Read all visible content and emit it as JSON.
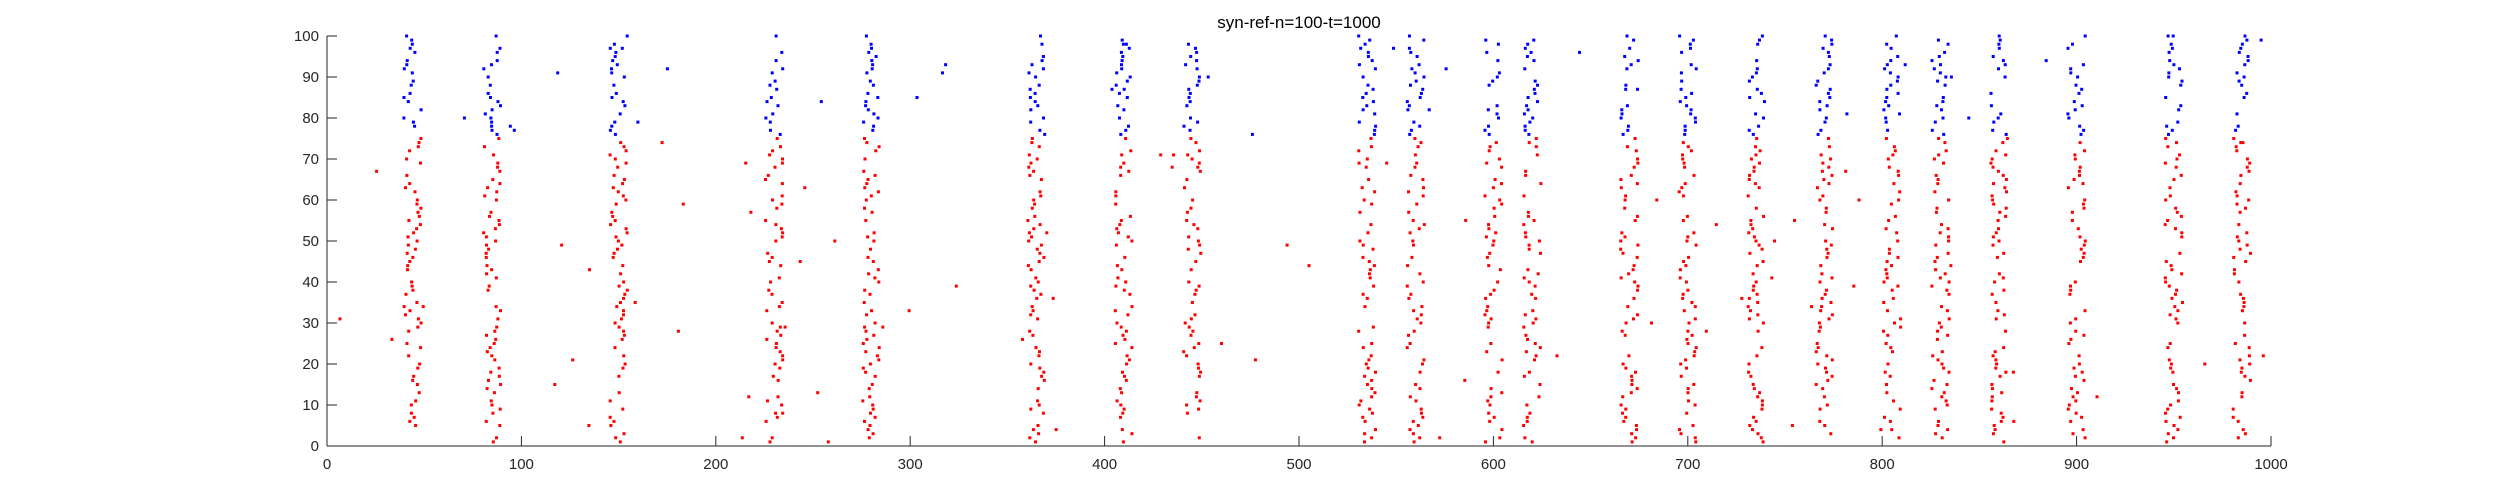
{
  "chart_data": {
    "type": "scatter",
    "title": "syn-ref-n=100-t=1000",
    "xlabel": "",
    "ylabel": "",
    "xlim": [
      0,
      1000
    ],
    "ylim": [
      0,
      100
    ],
    "x_ticks": [
      0,
      100,
      200,
      300,
      400,
      500,
      600,
      700,
      800,
      900,
      1000
    ],
    "y_ticks": [
      0,
      10,
      20,
      30,
      40,
      50,
      60,
      70,
      80,
      90,
      100
    ],
    "grid": false,
    "legend": "none",
    "series": [
      {
        "color": "#ff0000",
        "neuron_range": [
          1,
          75
        ],
        "burst_times": [
          44,
          85,
          150,
          230,
          280,
          365,
          410,
          445,
          535,
          560,
          600,
          620,
          670,
          700,
          735,
          770,
          805,
          830,
          860,
          900,
          950,
          985
        ]
      },
      {
        "color": "#0000ff",
        "neuron_range": [
          76,
          100
        ],
        "burst_times": [
          44,
          85,
          150,
          230,
          280,
          365,
          410,
          445,
          535,
          560,
          600,
          620,
          670,
          700,
          735,
          770,
          805,
          830,
          860,
          900,
          950,
          985
        ]
      }
    ]
  }
}
